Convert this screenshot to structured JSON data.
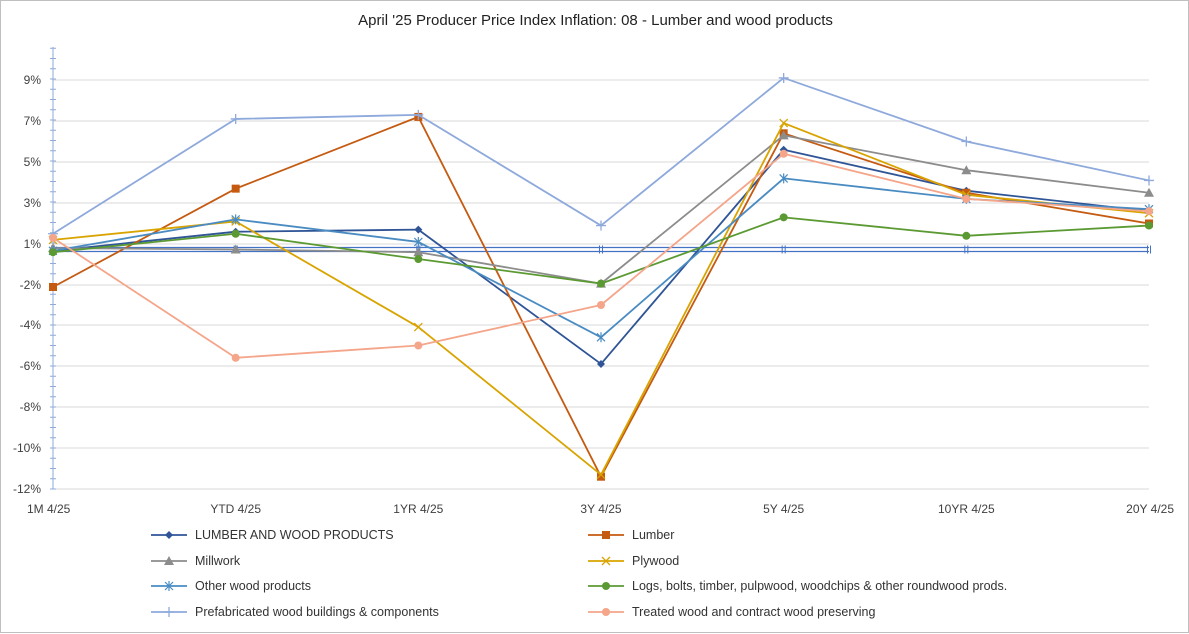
{
  "chart_data": {
    "type": "line",
    "title": "April '25 Producer Price Index Inflation: 08 - Lumber and wood products",
    "categories": [
      "1M 4/25",
      "YTD  4/25",
      "1YR 4/25",
      "3Y 4/25",
      "5Y 4/25",
      "10YR  4/25",
      "20Y 4/25"
    ],
    "yticks": [
      "9%",
      "7%",
      "5%",
      "3%",
      "1%",
      "-2%",
      "-4%",
      "-6%",
      "-8%",
      "-10%",
      "-12%"
    ],
    "ylim": [
      -12,
      10
    ],
    "grid": true,
    "legend_position": "bottom",
    "series": [
      {
        "name": "LUMBER AND WOOD PRODUCTS",
        "color": "#2f5597",
        "marker": "diamond",
        "values": [
          0.5,
          1.6,
          1.7,
          -5.9,
          5.6,
          3.6,
          2.6
        ]
      },
      {
        "name": "Lumber",
        "color": "#c55a11",
        "marker": "square",
        "values": [
          -2.1,
          3.7,
          7.2,
          -11.4,
          6.4,
          3.5,
          2.0
        ]
      },
      {
        "name": "Millwork",
        "color": "#8c8c8c",
        "marker": "triangle",
        "values": [
          0.7,
          0.6,
          0.4,
          -1.9,
          6.3,
          4.6,
          3.5
        ]
      },
      {
        "name": "Plywood",
        "color": "#d9a400",
        "marker": "x",
        "values": [
          1.2,
          2.1,
          -4.1,
          -11.3,
          6.9,
          3.4,
          2.5
        ]
      },
      {
        "name": "Other wood products",
        "color": "#4a8cc2",
        "marker": "asterisk",
        "values": [
          0.5,
          2.2,
          1.1,
          -4.6,
          4.2,
          3.2,
          2.7
        ]
      },
      {
        "name": "Logs, bolts, timber, pulpwood, woodchips & other roundwood prods.",
        "color": "#5b9a32",
        "marker": "circle",
        "values": [
          0.4,
          1.5,
          -0.1,
          -1.9,
          2.3,
          1.4,
          1.9
        ]
      },
      {
        "name": "Prefabricated wood buildings & components",
        "color": "#8ea9db",
        "marker": "plus",
        "values": [
          1.5,
          7.1,
          7.3,
          1.9,
          9.1,
          6.0,
          4.1
        ]
      },
      {
        "name": "Treated wood and contract wood preserving",
        "color": "#f4a58a",
        "marker": "circle",
        "values": [
          1.3,
          -5.6,
          -5.0,
          -3.0,
          5.4,
          3.2,
          2.6
        ]
      }
    ],
    "baseline": {
      "color": "#4472c4",
      "values": [
        0.6,
        0.6,
        0.6,
        0.6,
        0.6,
        0.6,
        0.6
      ]
    }
  }
}
